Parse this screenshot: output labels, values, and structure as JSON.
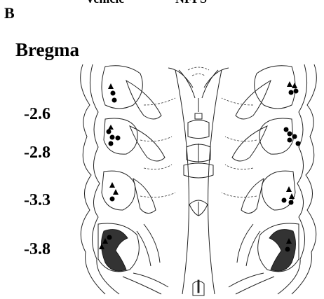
{
  "panel_label": "B",
  "legend": [
    "Vehicle",
    "NFPS"
  ],
  "bregma": {
    "title": "Bregma",
    "levels": [
      "-2.6",
      "-2.8",
      "-3.3",
      "-3.8"
    ]
  }
}
